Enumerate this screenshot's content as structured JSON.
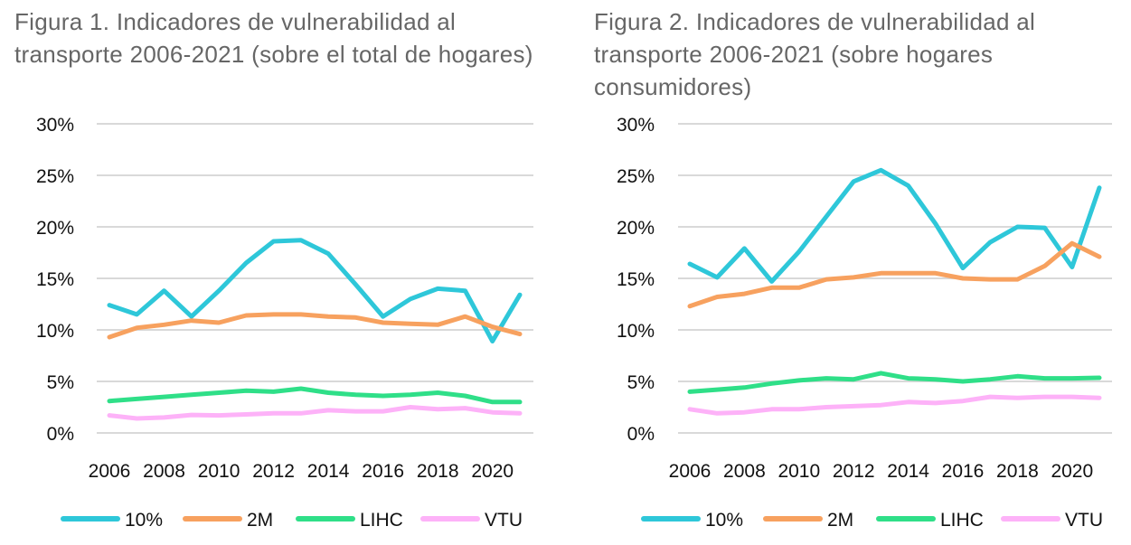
{
  "chart_data": [
    {
      "type": "line",
      "title": "Figura 1. Indicadores de vulnerabilidad al transporte 2006-2021 (sobre el total de hogares)",
      "x": [
        2006,
        2007,
        2008,
        2009,
        2010,
        2011,
        2012,
        2013,
        2014,
        2015,
        2016,
        2017,
        2018,
        2019,
        2020,
        2021
      ],
      "xticks": [
        "2006",
        "2008",
        "2010",
        "2012",
        "2014",
        "2016",
        "2018",
        "2020"
      ],
      "yticks": [
        "0%",
        "5%",
        "10%",
        "15%",
        "20%",
        "25%",
        "30%"
      ],
      "ylim": [
        0,
        30
      ],
      "grid": true,
      "legend": "bottom",
      "series": [
        {
          "name": "10%",
          "color": "#2ec7d9",
          "values": [
            12.4,
            11.5,
            13.8,
            11.3,
            13.8,
            16.5,
            18.6,
            18.7,
            17.4,
            14.4,
            11.3,
            13.0,
            14.0,
            13.8,
            8.9,
            13.4
          ]
        },
        {
          "name": "2M",
          "color": "#f7a15f",
          "values": [
            9.3,
            10.2,
            10.5,
            10.9,
            10.7,
            11.4,
            11.5,
            11.5,
            11.3,
            11.2,
            10.7,
            10.6,
            10.5,
            11.3,
            10.3,
            9.6
          ]
        },
        {
          "name": "LIHC",
          "color": "#2fdf88",
          "values": [
            3.1,
            3.3,
            3.5,
            3.7,
            3.9,
            4.1,
            4.0,
            4.3,
            3.9,
            3.7,
            3.6,
            3.7,
            3.9,
            3.6,
            3.0,
            3.0
          ]
        },
        {
          "name": "VTU",
          "color": "#fdb2f8",
          "values": [
            1.7,
            1.4,
            1.5,
            1.75,
            1.7,
            1.8,
            1.9,
            1.9,
            2.2,
            2.1,
            2.1,
            2.5,
            2.3,
            2.4,
            2.0,
            1.9
          ]
        }
      ]
    },
    {
      "type": "line",
      "title": "Figura 2. Indicadores de vulnerabilidad al transporte 2006-2021 (sobre hogares consumidores)",
      "x": [
        2006,
        2007,
        2008,
        2009,
        2010,
        2011,
        2012,
        2013,
        2014,
        2015,
        2016,
        2017,
        2018,
        2019,
        2020,
        2021
      ],
      "xticks": [
        "2006",
        "2008",
        "2010",
        "2012",
        "2014",
        "2016",
        "2018",
        "2020"
      ],
      "yticks": [
        "0%",
        "5%",
        "10%",
        "15%",
        "20%",
        "25%",
        "30%"
      ],
      "ylim": [
        0,
        30
      ],
      "grid": true,
      "legend": "bottom",
      "series": [
        {
          "name": "10%",
          "color": "#2ec7d9",
          "values": [
            16.4,
            15.1,
            17.9,
            14.7,
            17.6,
            21.0,
            24.4,
            25.5,
            24.0,
            20.3,
            16.0,
            18.5,
            20.0,
            19.9,
            16.1,
            23.8
          ]
        },
        {
          "name": "2M",
          "color": "#f7a15f",
          "values": [
            12.3,
            13.2,
            13.5,
            14.1,
            14.1,
            14.9,
            15.1,
            15.5,
            15.5,
            15.5,
            15.0,
            14.9,
            14.9,
            16.2,
            18.4,
            17.1
          ]
        },
        {
          "name": "LIHC",
          "color": "#2fdf88",
          "values": [
            4.0,
            4.2,
            4.4,
            4.8,
            5.1,
            5.3,
            5.2,
            5.8,
            5.3,
            5.2,
            5.0,
            5.2,
            5.5,
            5.3,
            5.3,
            5.35
          ]
        },
        {
          "name": "VTU",
          "color": "#fdb2f8",
          "values": [
            2.3,
            1.9,
            2.0,
            2.3,
            2.3,
            2.5,
            2.6,
            2.7,
            3.0,
            2.9,
            3.1,
            3.5,
            3.4,
            3.5,
            3.5,
            3.4
          ]
        }
      ]
    }
  ]
}
